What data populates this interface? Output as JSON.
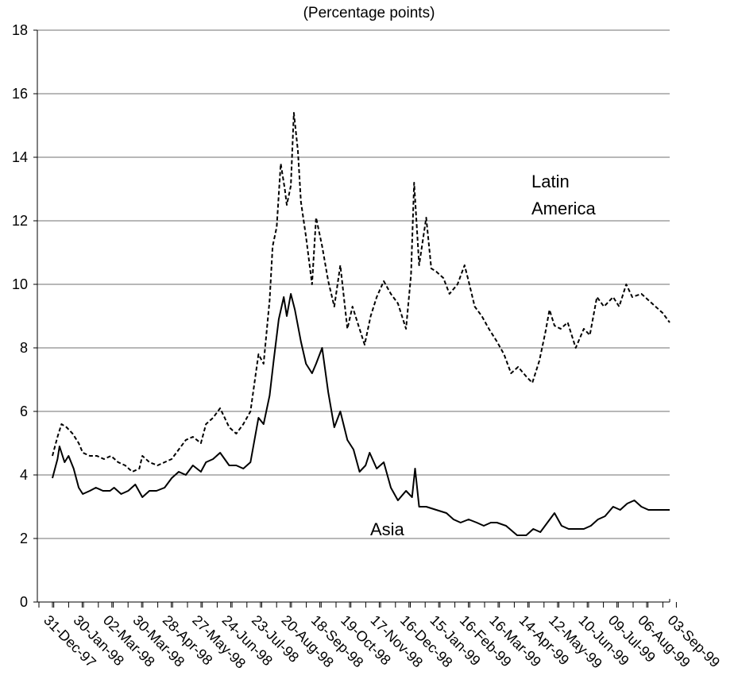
{
  "chart_data": {
    "type": "line",
    "title": "(Percentage points)",
    "xlabel": "",
    "ylabel": "",
    "ylim": [
      0,
      18
    ],
    "yticks": [
      0,
      2,
      4,
      6,
      8,
      10,
      12,
      14,
      16,
      18
    ],
    "grid": true,
    "x_tick_labels": [
      "31-Dec-97",
      "30-Jan-98",
      "02-Mar-98",
      "30-Mar-98",
      "28-Apr-98",
      "27-May-98",
      "24-Jun-98",
      "23-Jul-98",
      "20-Aug-98",
      "18-Sep-98",
      "19-Oct-98",
      "17-Nov-98",
      "16-Dec-98",
      "15-Jan-99",
      "16-Feb-99",
      "16-Mar-99",
      "14-Apr-99",
      "12-May-99",
      "10-Jun-99",
      "09-Jul-99",
      "06-Aug-99",
      "03-Sep-99"
    ],
    "x_range": [
      "1997-12-31",
      "1999-09-03"
    ],
    "series": [
      {
        "name": "Latin America",
        "style": "dashed",
        "color": "#000000",
        "points": [
          [
            "1997-12-31",
            4.6
          ],
          [
            "1998-01-05",
            5.2
          ],
          [
            "1998-01-09",
            5.6
          ],
          [
            "1998-01-14",
            5.5
          ],
          [
            "1998-01-20",
            5.3
          ],
          [
            "1998-01-26",
            5.0
          ],
          [
            "1998-01-30",
            4.7
          ],
          [
            "1998-02-06",
            4.6
          ],
          [
            "1998-02-13",
            4.6
          ],
          [
            "1998-02-20",
            4.5
          ],
          [
            "1998-02-27",
            4.6
          ],
          [
            "1998-03-06",
            4.4
          ],
          [
            "1998-03-13",
            4.3
          ],
          [
            "1998-03-20",
            4.1
          ],
          [
            "1998-03-27",
            4.2
          ],
          [
            "1998-03-30",
            4.6
          ],
          [
            "1998-04-06",
            4.4
          ],
          [
            "1998-04-14",
            4.3
          ],
          [
            "1998-04-21",
            4.4
          ],
          [
            "1998-04-28",
            4.5
          ],
          [
            "1998-05-05",
            4.8
          ],
          [
            "1998-05-12",
            5.1
          ],
          [
            "1998-05-19",
            5.2
          ],
          [
            "1998-05-27",
            5.0
          ],
          [
            "1998-06-01",
            5.6
          ],
          [
            "1998-06-08",
            5.8
          ],
          [
            "1998-06-15",
            6.1
          ],
          [
            "1998-06-24",
            5.5
          ],
          [
            "1998-07-01",
            5.3
          ],
          [
            "1998-07-08",
            5.6
          ],
          [
            "1998-07-15",
            6.0
          ],
          [
            "1998-07-23",
            7.8
          ],
          [
            "1998-07-28",
            7.5
          ],
          [
            "1998-08-03",
            9.5
          ],
          [
            "1998-08-06",
            11.2
          ],
          [
            "1998-08-10",
            11.8
          ],
          [
            "1998-08-14",
            13.8
          ],
          [
            "1998-08-18",
            13.0
          ],
          [
            "1998-08-20",
            12.5
          ],
          [
            "1998-08-24",
            13.1
          ],
          [
            "1998-08-27",
            15.4
          ],
          [
            "1998-08-31",
            14.2
          ],
          [
            "1998-09-03",
            12.6
          ],
          [
            "1998-09-08",
            11.5
          ],
          [
            "1998-09-14",
            10.0
          ],
          [
            "1998-09-18",
            12.1
          ],
          [
            "1998-09-24",
            11.2
          ],
          [
            "1998-09-30",
            10.1
          ],
          [
            "1998-10-06",
            9.3
          ],
          [
            "1998-10-12",
            10.6
          ],
          [
            "1998-10-19",
            8.6
          ],
          [
            "1998-10-24",
            9.3
          ],
          [
            "1998-10-30",
            8.7
          ],
          [
            "1998-11-05",
            8.1
          ],
          [
            "1998-11-11",
            9.0
          ],
          [
            "1998-11-17",
            9.6
          ],
          [
            "1998-11-24",
            10.1
          ],
          [
            "1998-12-01",
            9.7
          ],
          [
            "1998-12-08",
            9.4
          ],
          [
            "1998-12-16",
            8.6
          ],
          [
            "1998-12-21",
            10.3
          ],
          [
            "1998-12-24",
            13.2
          ],
          [
            "1998-12-29",
            10.6
          ],
          [
            "1999-01-05",
            12.1
          ],
          [
            "1999-01-10",
            10.5
          ],
          [
            "1999-01-15",
            10.4
          ],
          [
            "1999-01-22",
            10.2
          ],
          [
            "1999-01-28",
            9.7
          ],
          [
            "1999-02-05",
            10.0
          ],
          [
            "1999-02-12",
            10.6
          ],
          [
            "1999-02-16",
            10.1
          ],
          [
            "1999-02-22",
            9.3
          ],
          [
            "1999-03-01",
            9.0
          ],
          [
            "1999-03-08",
            8.6
          ],
          [
            "1999-03-16",
            8.2
          ],
          [
            "1999-03-23",
            7.8
          ],
          [
            "1999-03-30",
            7.2
          ],
          [
            "1999-04-06",
            7.4
          ],
          [
            "1999-04-14",
            7.1
          ],
          [
            "1999-04-20",
            6.9
          ],
          [
            "1999-04-27",
            7.6
          ],
          [
            "1999-05-03",
            8.5
          ],
          [
            "1999-05-07",
            9.2
          ],
          [
            "1999-05-12",
            8.7
          ],
          [
            "1999-05-18",
            8.6
          ],
          [
            "1999-05-25",
            8.8
          ],
          [
            "1999-06-02",
            8.0
          ],
          [
            "1999-06-10",
            8.6
          ],
          [
            "1999-06-16",
            8.4
          ],
          [
            "1999-06-23",
            9.6
          ],
          [
            "1999-06-30",
            9.3
          ],
          [
            "1999-07-09",
            9.6
          ],
          [
            "1999-07-15",
            9.3
          ],
          [
            "1999-07-22",
            10.0
          ],
          [
            "1999-07-28",
            9.6
          ],
          [
            "1999-08-06",
            9.7
          ],
          [
            "1999-08-13",
            9.5
          ],
          [
            "1999-08-20",
            9.3
          ],
          [
            "1999-08-27",
            9.1
          ],
          [
            "1999-09-03",
            8.8
          ]
        ]
      },
      {
        "name": "Asia",
        "style": "solid",
        "color": "#000000",
        "points": [
          [
            "1997-12-31",
            3.9
          ],
          [
            "1998-01-05",
            4.5
          ],
          [
            "1998-01-07",
            4.9
          ],
          [
            "1998-01-12",
            4.4
          ],
          [
            "1998-01-16",
            4.6
          ],
          [
            "1998-01-21",
            4.2
          ],
          [
            "1998-01-26",
            3.6
          ],
          [
            "1998-01-30",
            3.4
          ],
          [
            "1998-02-06",
            3.5
          ],
          [
            "1998-02-12",
            3.6
          ],
          [
            "1998-02-19",
            3.5
          ],
          [
            "1998-02-26",
            3.5
          ],
          [
            "1998-03-02",
            3.6
          ],
          [
            "1998-03-09",
            3.4
          ],
          [
            "1998-03-16",
            3.5
          ],
          [
            "1998-03-23",
            3.7
          ],
          [
            "1998-03-30",
            3.3
          ],
          [
            "1998-04-06",
            3.5
          ],
          [
            "1998-04-13",
            3.5
          ],
          [
            "1998-04-21",
            3.6
          ],
          [
            "1998-04-28",
            3.9
          ],
          [
            "1998-05-05",
            4.1
          ],
          [
            "1998-05-12",
            4.0
          ],
          [
            "1998-05-19",
            4.3
          ],
          [
            "1998-05-27",
            4.1
          ],
          [
            "1998-06-01",
            4.4
          ],
          [
            "1998-06-08",
            4.5
          ],
          [
            "1998-06-15",
            4.7
          ],
          [
            "1998-06-24",
            4.3
          ],
          [
            "1998-07-01",
            4.3
          ],
          [
            "1998-07-08",
            4.2
          ],
          [
            "1998-07-15",
            4.4
          ],
          [
            "1998-07-23",
            5.8
          ],
          [
            "1998-07-28",
            5.6
          ],
          [
            "1998-08-03",
            6.5
          ],
          [
            "1998-08-07",
            7.6
          ],
          [
            "1998-08-12",
            8.9
          ],
          [
            "1998-08-17",
            9.6
          ],
          [
            "1998-08-20",
            9.0
          ],
          [
            "1998-08-24",
            9.7
          ],
          [
            "1998-08-28",
            9.2
          ],
          [
            "1998-09-03",
            8.2
          ],
          [
            "1998-09-08",
            7.5
          ],
          [
            "1998-09-14",
            7.2
          ],
          [
            "1998-09-18",
            7.5
          ],
          [
            "1998-09-24",
            8.0
          ],
          [
            "1998-09-30",
            6.6
          ],
          [
            "1998-10-06",
            5.5
          ],
          [
            "1998-10-12",
            6.0
          ],
          [
            "1998-10-19",
            5.1
          ],
          [
            "1998-10-25",
            4.8
          ],
          [
            "1998-10-31",
            4.1
          ],
          [
            "1998-11-06",
            4.3
          ],
          [
            "1998-11-10",
            4.7
          ],
          [
            "1998-11-17",
            4.2
          ],
          [
            "1998-11-24",
            4.4
          ],
          [
            "1998-12-01",
            3.6
          ],
          [
            "1998-12-08",
            3.2
          ],
          [
            "1998-12-16",
            3.5
          ],
          [
            "1998-12-22",
            3.3
          ],
          [
            "1998-12-25",
            4.2
          ],
          [
            "1998-12-29",
            3.0
          ],
          [
            "1999-01-05",
            3.0
          ],
          [
            "1999-01-15",
            2.9
          ],
          [
            "1999-01-25",
            2.8
          ],
          [
            "1999-02-01",
            2.6
          ],
          [
            "1999-02-08",
            2.5
          ],
          [
            "1999-02-16",
            2.6
          ],
          [
            "1999-02-24",
            2.5
          ],
          [
            "1999-03-03",
            2.4
          ],
          [
            "1999-03-10",
            2.5
          ],
          [
            "1999-03-16",
            2.5
          ],
          [
            "1999-03-25",
            2.4
          ],
          [
            "1999-04-05",
            2.1
          ],
          [
            "1999-04-14",
            2.1
          ],
          [
            "1999-04-21",
            2.3
          ],
          [
            "1999-04-28",
            2.2
          ],
          [
            "1999-05-05",
            2.5
          ],
          [
            "1999-05-12",
            2.8
          ],
          [
            "1999-05-19",
            2.4
          ],
          [
            "1999-05-26",
            2.3
          ],
          [
            "1999-06-02",
            2.3
          ],
          [
            "1999-06-10",
            2.3
          ],
          [
            "1999-06-17",
            2.4
          ],
          [
            "1999-06-24",
            2.6
          ],
          [
            "1999-07-01",
            2.7
          ],
          [
            "1999-07-09",
            3.0
          ],
          [
            "1999-07-16",
            2.9
          ],
          [
            "1999-07-23",
            3.1
          ],
          [
            "1999-07-30",
            3.2
          ],
          [
            "1999-08-06",
            3.0
          ],
          [
            "1999-08-13",
            2.9
          ],
          [
            "1999-08-20",
            2.9
          ],
          [
            "1999-08-27",
            2.9
          ],
          [
            "1999-09-03",
            2.9
          ]
        ]
      }
    ],
    "annotations": [
      {
        "name": "latin-america",
        "lines": [
          "Latin",
          "America"
        ]
      },
      {
        "name": "asia",
        "lines": [
          "Asia"
        ]
      }
    ]
  }
}
